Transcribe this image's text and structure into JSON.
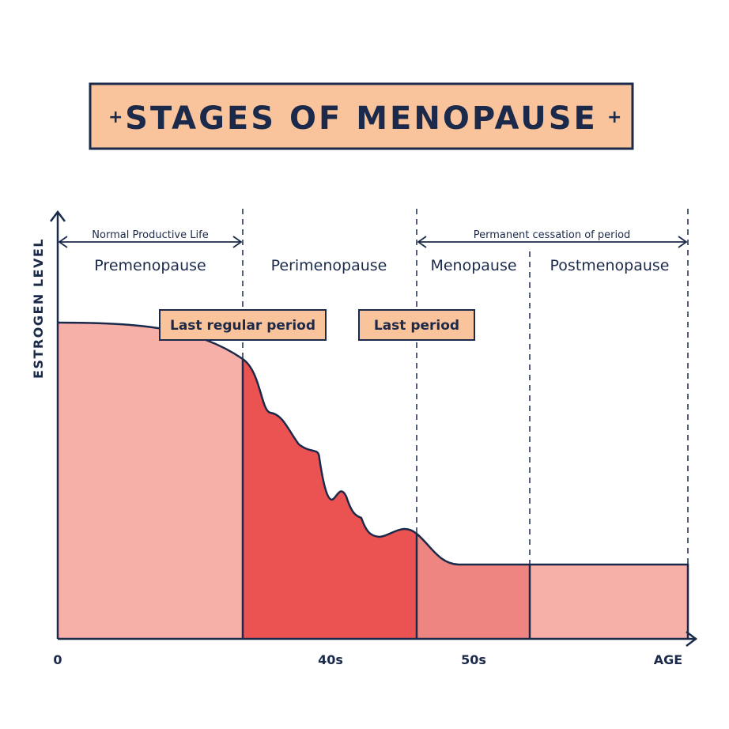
{
  "title": "STAGES OF MENOPAUSE",
  "axis": {
    "y_label": "ESTROGEN LEVEL",
    "x_label": "AGE",
    "x_ticks": [
      "0",
      "40s",
      "50s"
    ]
  },
  "stages": [
    "Premenopause",
    "Perimenopause",
    "Menopause",
    "Postmenopause"
  ],
  "ranges": {
    "normal_life": "Normal Productive Life",
    "cessation": "Permanent cessation of period"
  },
  "callouts": {
    "last_regular": "Last regular period",
    "last_period": "Last period"
  },
  "colors": {
    "navy": "#1b2a4a",
    "title_bg": "#f9c49c",
    "premenopause": "#f6b0a8",
    "perimenopause": "#eb5252",
    "menopause": "#ef8580",
    "postmenopause": "#f6b0a8"
  }
}
